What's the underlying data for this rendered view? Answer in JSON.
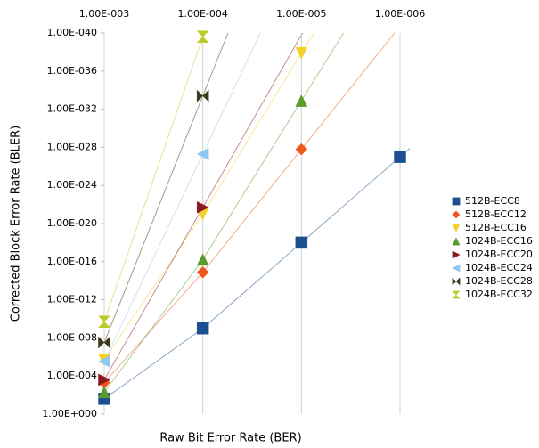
{
  "chart_data": {
    "type": "line",
    "x_label": "Raw Bit Error Rate (BER)",
    "y_label": "Corrected Block Error Rate (BLER)",
    "x": [
      0.001,
      0.0001,
      1e-05,
      1e-06
    ],
    "xscale": "log",
    "yscale": "log",
    "grid": "x",
    "legend": "right",
    "xlim": [
      0.001,
      1e-06
    ],
    "xticks": [
      {
        "value": 0.001,
        "label": "1.00E-003"
      },
      {
        "value": 0.0001,
        "label": "1.00E-004"
      },
      {
        "value": 1e-05,
        "label": "1.00E-005"
      },
      {
        "value": 1e-06,
        "label": "1.00E-006"
      }
    ],
    "ylim": [
      1,
      1e-40
    ],
    "yticks": [
      {
        "value": 1,
        "label": "1.00E+000"
      },
      {
        "value": 0.0001,
        "label": "1.00E-004"
      },
      {
        "value": 1e-08,
        "label": "1.00E-008"
      },
      {
        "value": 1e-12,
        "label": "1.00E-012"
      },
      {
        "value": 1e-16,
        "label": "1.00E-016"
      },
      {
        "value": 1e-20,
        "label": "1.00E-020"
      },
      {
        "value": 1e-24,
        "label": "1.00E-024"
      },
      {
        "value": 1e-28,
        "label": "1.00E-028"
      },
      {
        "value": 1e-32,
        "label": "1.00E-032"
      },
      {
        "value": 1e-36,
        "label": "1.00E-036"
      },
      {
        "value": 1e-40,
        "label": "1.00E-040"
      }
    ],
    "series": [
      {
        "name": "512B-ECC8",
        "color": "#1c4f8f",
        "marker": "square",
        "values": [
          0.025,
          1e-09,
          1e-18,
          1e-27
        ]
      },
      {
        "name": "512B-ECC12",
        "color": "#f0561c",
        "marker": "diamond",
        "values": [
          0.0005,
          1.3e-15,
          1.6e-28,
          null
        ]
      },
      {
        "name": "512B-ECC16",
        "color": "#f4d22a",
        "marker": "triangle-down",
        "values": [
          2e-06,
          1e-21,
          1.3e-38,
          null
        ]
      },
      {
        "name": "1024B-ECC16",
        "color": "#5b9b2b",
        "marker": "triangle-up",
        "values": [
          0.005,
          6e-17,
          1.3e-33,
          null
        ]
      },
      {
        "name": "1024B-ECC20",
        "color": "#8a1a1e",
        "marker": "triangle-right",
        "values": [
          0.00025,
          2e-22,
          null,
          null
        ]
      },
      {
        "name": "1024B-ECC24",
        "color": "#8fc7ef",
        "marker": "triangle-left",
        "values": [
          3e-06,
          5e-28,
          null,
          null
        ]
      },
      {
        "name": "1024B-ECC28",
        "color": "#3b3a1c",
        "marker": "bowtie",
        "values": [
          3e-08,
          4e-34,
          null,
          null
        ]
      },
      {
        "name": "1024B-ECC32",
        "color": "#bccb25",
        "marker": "hourglass",
        "values": [
          2e-10,
          2.5e-40,
          null,
          null
        ]
      }
    ]
  }
}
